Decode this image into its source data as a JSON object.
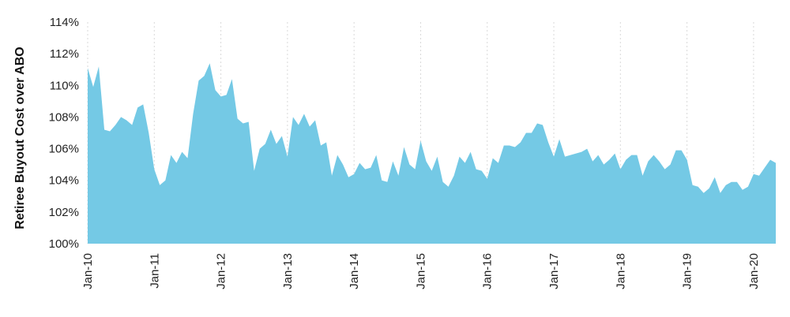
{
  "chart_data": {
    "type": "area",
    "title": "",
    "xlabel": "",
    "ylabel": "Retiree Buyout Cost over ABO",
    "color": "#74c9e5",
    "grid": true,
    "ylim": [
      100,
      114
    ],
    "ytick_values": [
      100,
      102,
      104,
      106,
      108,
      110,
      112,
      114
    ],
    "ytick_labels": [
      "100%",
      "102%",
      "104%",
      "106%",
      "108%",
      "110%",
      "112%",
      "114%"
    ],
    "xtick_labels": [
      "Jan-10",
      "Jan-11",
      "Jan-12",
      "Jan-13",
      "Jan-14",
      "Jan-15",
      "Jan-16",
      "Jan-17",
      "Jan-18",
      "Jan-19",
      "Jan-20"
    ],
    "xtick_dates": [
      "2010-01",
      "2011-01",
      "2012-01",
      "2013-01",
      "2014-01",
      "2015-01",
      "2016-01",
      "2017-01",
      "2018-01",
      "2019-01",
      "2020-01"
    ],
    "xlim": [
      "2010-01",
      "2020-05"
    ],
    "series": [
      {
        "name": "",
        "x": [
          "2010-01",
          "2010-02",
          "2010-03",
          "2010-04",
          "2010-05",
          "2010-06",
          "2010-07",
          "2010-08",
          "2010-09",
          "2010-10",
          "2010-11",
          "2010-12",
          "2011-01",
          "2011-02",
          "2011-03",
          "2011-04",
          "2011-05",
          "2011-06",
          "2011-07",
          "2011-08",
          "2011-09",
          "2011-10",
          "2011-11",
          "2011-12",
          "2012-01",
          "2012-02",
          "2012-03",
          "2012-04",
          "2012-05",
          "2012-06",
          "2012-07",
          "2012-08",
          "2012-09",
          "2012-10",
          "2012-11",
          "2012-12",
          "2013-01",
          "2013-02",
          "2013-03",
          "2013-04",
          "2013-05",
          "2013-06",
          "2013-07",
          "2013-08",
          "2013-09",
          "2013-10",
          "2013-11",
          "2013-12",
          "2014-01",
          "2014-02",
          "2014-03",
          "2014-04",
          "2014-05",
          "2014-06",
          "2014-07",
          "2014-08",
          "2014-09",
          "2014-10",
          "2014-11",
          "2014-12",
          "2015-01",
          "2015-02",
          "2015-03",
          "2015-04",
          "2015-05",
          "2015-06",
          "2015-07",
          "2015-08",
          "2015-09",
          "2015-10",
          "2015-11",
          "2015-12",
          "2016-01",
          "2016-02",
          "2016-03",
          "2016-04",
          "2016-05",
          "2016-06",
          "2016-07",
          "2016-08",
          "2016-09",
          "2016-10",
          "2016-11",
          "2016-12",
          "2017-01",
          "2017-02",
          "2017-03",
          "2017-04",
          "2017-05",
          "2017-06",
          "2017-07",
          "2017-08",
          "2017-09",
          "2017-10",
          "2017-11",
          "2017-12",
          "2018-01",
          "2018-02",
          "2018-03",
          "2018-04",
          "2018-05",
          "2018-06",
          "2018-07",
          "2018-08",
          "2018-09",
          "2018-10",
          "2018-11",
          "2018-12",
          "2019-01",
          "2019-02",
          "2019-03",
          "2019-04",
          "2019-05",
          "2019-06",
          "2019-07",
          "2019-08",
          "2019-09",
          "2019-10",
          "2019-11",
          "2019-12",
          "2020-01",
          "2020-02",
          "2020-03",
          "2020-04",
          "2020-05"
        ],
        "values": [
          111.1,
          109.9,
          111.2,
          107.2,
          107.1,
          107.5,
          108.0,
          107.8,
          107.5,
          108.6,
          108.8,
          107.0,
          104.7,
          103.7,
          104.0,
          105.6,
          105.1,
          105.8,
          105.4,
          108.2,
          110.3,
          110.6,
          111.4,
          109.7,
          109.3,
          109.4,
          110.4,
          107.9,
          107.6,
          107.7,
          104.6,
          106.0,
          106.3,
          107.2,
          106.3,
          106.8,
          105.5,
          108.0,
          107.5,
          108.2,
          107.4,
          107.8,
          106.2,
          106.4,
          104.3,
          105.6,
          105.0,
          104.2,
          104.4,
          105.1,
          104.7,
          104.8,
          105.6,
          104.0,
          103.9,
          105.2,
          104.3,
          106.1,
          105.0,
          104.7,
          106.5,
          105.2,
          104.6,
          105.5,
          103.9,
          103.6,
          104.3,
          105.5,
          105.1,
          105.8,
          104.7,
          104.6,
          104.1,
          105.4,
          105.1,
          106.2,
          106.2,
          106.1,
          106.4,
          107.0,
          107.0,
          107.6,
          107.5,
          106.4,
          105.5,
          106.6,
          105.5,
          105.6,
          105.7,
          105.8,
          106.0,
          105.2,
          105.6,
          105.0,
          105.3,
          105.7,
          104.7,
          105.3,
          105.6,
          105.6,
          104.3,
          105.2,
          105.6,
          105.2,
          104.7,
          105.0,
          105.9,
          105.9,
          105.3,
          103.7,
          103.6,
          103.2,
          103.5,
          104.2,
          103.2,
          103.7,
          103.9,
          103.9,
          103.4,
          103.6,
          104.4,
          104.3,
          104.8,
          105.3,
          105.1
        ]
      }
    ]
  }
}
